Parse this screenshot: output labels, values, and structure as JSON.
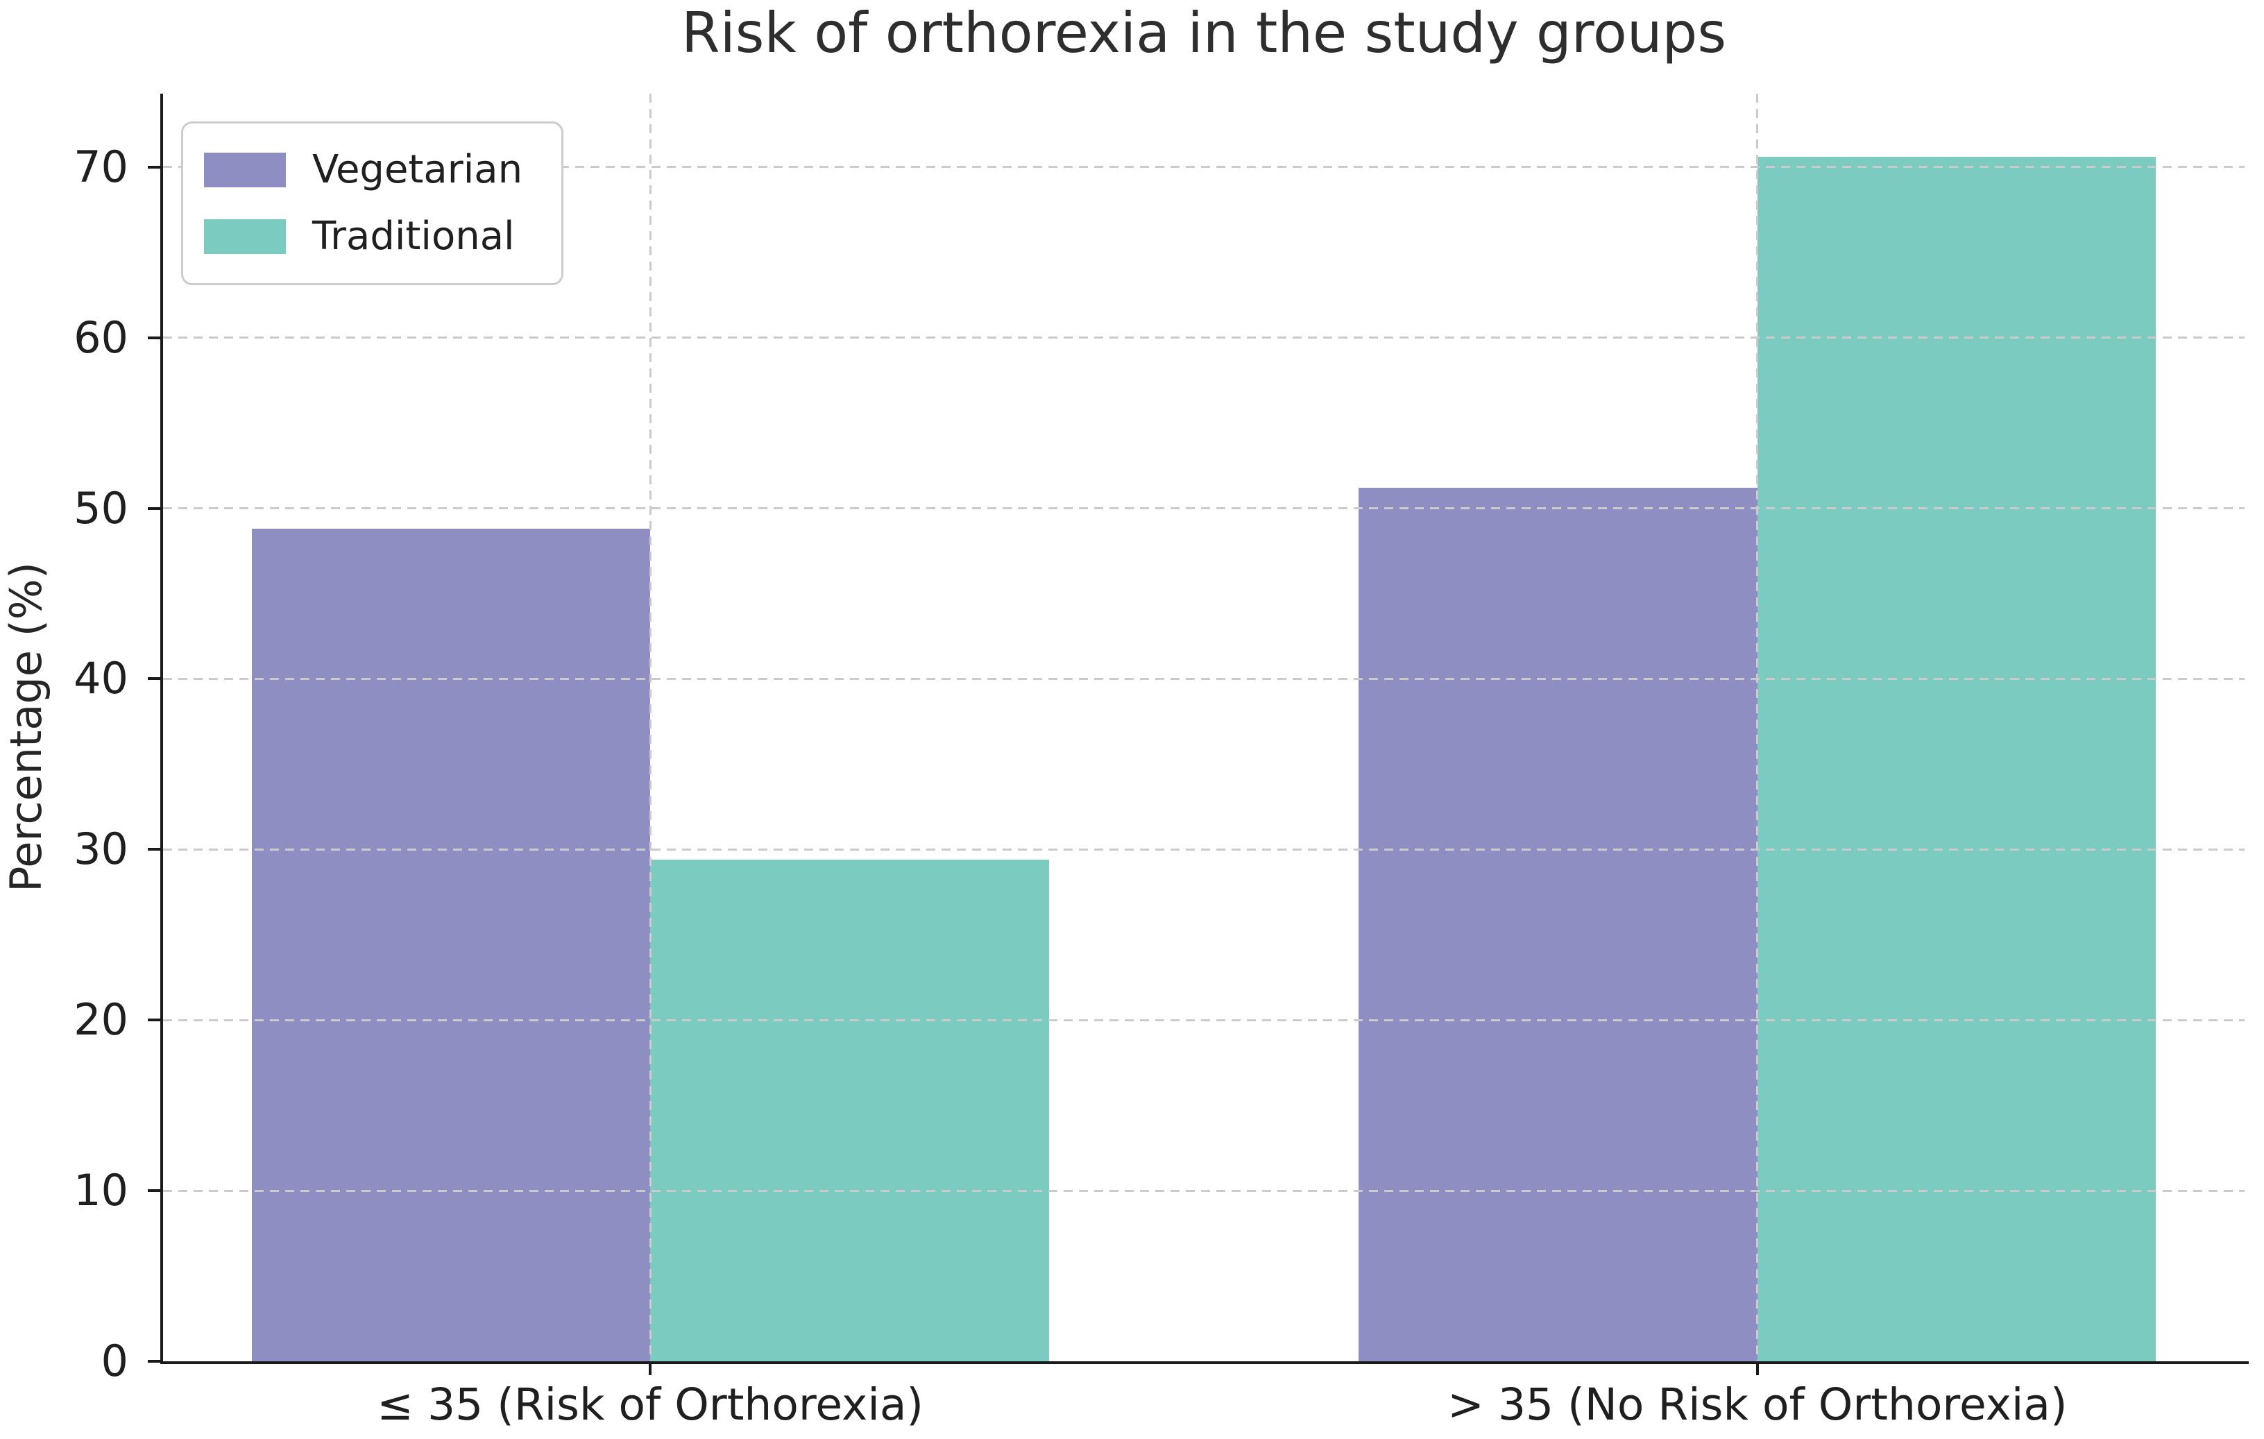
{
  "chart_data": {
    "type": "bar",
    "title": "Risk of orthorexia in the study groups",
    "xlabel": "",
    "ylabel": "Percentage (%)",
    "categories": [
      "≤ 35 (Risk of Orthorexia)",
      "> 35 (No Risk of Orthorexia)"
    ],
    "series": [
      {
        "name": "Vegetarian",
        "color": "#8e8ec3",
        "values": [
          48.8,
          51.2
        ]
      },
      {
        "name": "Traditional",
        "color": "#7bcbc1",
        "values": [
          29.4,
          70.6
        ]
      }
    ],
    "ylim": [
      0,
      74.3
    ],
    "yticks": [
      0,
      10,
      20,
      30,
      40,
      50,
      60,
      70
    ],
    "xlim": [
      -0.44,
      1.44
    ],
    "group_centers": [
      0,
      1
    ],
    "bar_width": 0.36,
    "grid": {
      "horizontal": true,
      "vertical": true,
      "style": "dashed",
      "color": "#cccccc"
    },
    "legend_position": "upper left",
    "background": "#ffffff",
    "text_color": "#262626"
  }
}
